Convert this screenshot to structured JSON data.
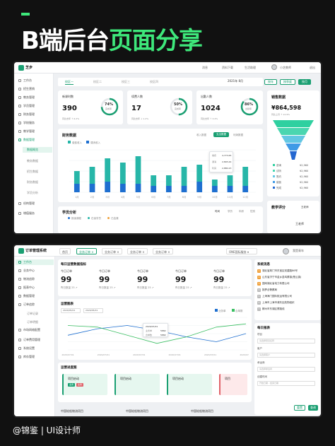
{
  "poster": {
    "title_plain": "B端后台",
    "title_highlight": "页面分享",
    "footer": "@锦鉴 | UI设计师"
  },
  "screen1": {
    "app_name": "芝步",
    "topbar": [
      "消息",
      "资料下载",
      "生活助理",
      "小芝教师"
    ],
    "topbar_right": "退出",
    "sidebar": [
      {
        "label": "工作台",
        "active": false
      },
      {
        "label": "招生营销",
        "active": false
      },
      {
        "label": "教务管理",
        "active": false
      },
      {
        "label": "学员管理",
        "active": false
      },
      {
        "label": "财务管理",
        "active": false
      },
      {
        "label": "学校服务",
        "active": false
      },
      {
        "label": "教学管理",
        "active": false
      },
      {
        "label": "数据管理",
        "active": true
      }
    ],
    "sidebar_sub": [
      {
        "label": "数据概览",
        "active": true
      },
      {
        "label": "教务数据",
        "active": false
      },
      {
        "label": "招生数据",
        "active": false
      },
      {
        "label": "财务数据",
        "active": false
      },
      {
        "label": "学员分析",
        "active": false
      }
    ],
    "sidebar_more": [
      "机构管理",
      "增值服务"
    ],
    "tabs": [
      {
        "label": "校区一",
        "active": true
      },
      {
        "label": "校区二",
        "active": false
      },
      {
        "label": "校区三",
        "active": false
      },
      {
        "label": "校区四",
        "active": false
      }
    ],
    "date": "2021年 8月",
    "buttons": [
      "按年",
      "按季度",
      "按月"
    ],
    "kpis": [
      {
        "label": "新课时数",
        "value": "390",
        "pct": "74%",
        "pct_sub": "完成率",
        "sub": "同比去年  ↑ 6.2%",
        "fill": 0.74
      },
      {
        "label": "续费人数",
        "value": "17",
        "pct": "50%",
        "pct_sub": "完成率",
        "sub": "同比去年  ↓ 1.2%",
        "fill": 0.5
      },
      {
        "label": "出勤人数",
        "value": "1024",
        "pct": "86%",
        "pct_sub": "出勤率",
        "sub": "同比去年  ↑ 3.4%",
        "fill": 0.86
      }
    ],
    "sales": {
      "title": "销售数据",
      "value": "¥864,598",
      "sub": "同比上月 ↑ 12.9%",
      "legend": [
        {
          "name": "咨询",
          "value": "¥2,960"
        },
        {
          "name": "试听",
          "value": "¥2,960"
        },
        {
          "name": "签约",
          "value": "¥2,960"
        },
        {
          "name": "缴费",
          "value": "¥2,960"
        },
        {
          "name": "完成",
          "value": "¥2,960"
        }
      ]
    },
    "finance_title": "财务数据",
    "finance_tabs": [
      "收入数据",
      "支出数据",
      "利润数据"
    ],
    "finance_legend": [
      "缴费收入",
      "课消收入"
    ],
    "tooltip": [
      "缴费",
      "4,773.65",
      "课消",
      "2,893.44",
      "利润",
      "2,880.23"
    ],
    "student_title": "学员分析",
    "student_legend": [
      "报读课程",
      "在读学员",
      "已结课"
    ],
    "student_tabs": [
      "时间",
      "学历",
      "年龄",
      "性别"
    ],
    "teacher_title": "教学评分",
    "teacher_select": "王老师",
    "teacher_name": "王老师",
    "colors": {
      "primary": "#1a9f72",
      "teal": "#27b6a8",
      "blue": "#1e6fd0"
    }
  },
  "chart_data": {
    "type": "bar",
    "title": "财务数据",
    "categories": [
      "1月",
      "2月",
      "3月",
      "4月",
      "5月",
      "6月",
      "7月",
      "8月",
      "9月",
      "10月",
      "11月",
      "12月"
    ],
    "series": [
      {
        "name": "缴费收入",
        "values": [
          10,
          12,
          16,
          14,
          17,
          8,
          8,
          12,
          13,
          6,
          8,
          12
        ]
      },
      {
        "name": "课消收入",
        "values": [
          4,
          4,
          5,
          4,
          4,
          3,
          3,
          3,
          5,
          3,
          3,
          3
        ]
      }
    ],
    "ylim": [
      0,
      20
    ]
  },
  "screen2": {
    "app_name": "订单管理系统",
    "tabs": [
      {
        "label": "首页",
        "active": false
      },
      {
        "label": "业务订单",
        "active": true
      },
      {
        "label": "业务订单",
        "active": false
      },
      {
        "label": "业务订单",
        "active": false
      },
      {
        "label": "业务订单",
        "active": false
      }
    ],
    "org_select": "ONE国际服务",
    "user_name": "我是青年",
    "sidebar": [
      {
        "label": "工作台",
        "active": true
      },
      {
        "label": "业务中心",
        "active": false
      },
      {
        "label": "物流追踪",
        "active": false
      },
      {
        "label": "报表中心",
        "active": false
      },
      {
        "label": "数据管理",
        "active": false
      },
      {
        "label": "订单追踪",
        "active": false
      },
      {
        "label": "订单记录",
        "active": false
      },
      {
        "label": "订单明细",
        "active": false
      },
      {
        "label": "市场网络配置",
        "active": false
      },
      {
        "label": "订单费用管理",
        "active": false
      },
      {
        "label": "系统设置",
        "active": false
      },
      {
        "label": "库存管理",
        "active": false
      }
    ],
    "overview_title": "每日运营数据指标",
    "stats": [
      {
        "label": "今日订单",
        "value": "99",
        "sub": "昨日数量 25 ↗"
      },
      {
        "label": "今日订单",
        "value": "99",
        "sub": "昨日数量 25 ↗"
      },
      {
        "label": "今日订单",
        "value": "99",
        "sub": "昨日数量 25 ↗"
      },
      {
        "label": "今日订单",
        "value": "99",
        "sub": "昨日数量 25 ↗"
      },
      {
        "label": "今日订单",
        "value": "99",
        "sub": "昨日数量 25 ↗"
      }
    ],
    "chart_title": "运营图表",
    "date_from": "2020/05/01",
    "date_to": "2020/05/01",
    "chart_legend": [
      "业务单",
      "合单数"
    ],
    "chart_x": [
      "2020/07/01",
      "2020/07/01",
      "2020/07/01",
      "2020/07/01",
      "2020/07/01",
      "2020/07/01"
    ],
    "tooltip": [
      "2020/07/01",
      "业务单",
      "5882",
      "合单数",
      "5882"
    ],
    "progress_title": "运营进度图",
    "progress_items": [
      "项目启动",
      "项目启动",
      "项目启动",
      "项目"
    ],
    "progress_tags": [
      "业务",
      "业务"
    ],
    "bottom_selects": [
      "中国轮船物流项目",
      "中国轮船物流项目",
      "中国轮船物流项目"
    ],
    "news_title": "系统消息",
    "news": [
      "湖北省荆门市东宝区双建路86号",
      "山东省济宁市金乡县鸡黍镇(是山镇)",
      "国网湖北省电力有限公司",
      "抱罗必警察局",
      "上海海门国际航运有限公司",
      "上海市上海市浦东区航物组织",
      "郴州市东湖区蔡路线"
    ],
    "daily_title": "每日报表",
    "form": [
      {
        "label": "项目",
        "placeholder": "请选择项目名称"
      },
      {
        "label": "客户",
        "placeholder": "请选择客户"
      },
      {
        "label": "承运商",
        "placeholder": "请选择承运商"
      },
      {
        "label": "创建时间",
        "placeholder": "开始日期 - 结束日期"
      }
    ],
    "reset": "重置",
    "query": "查询"
  }
}
